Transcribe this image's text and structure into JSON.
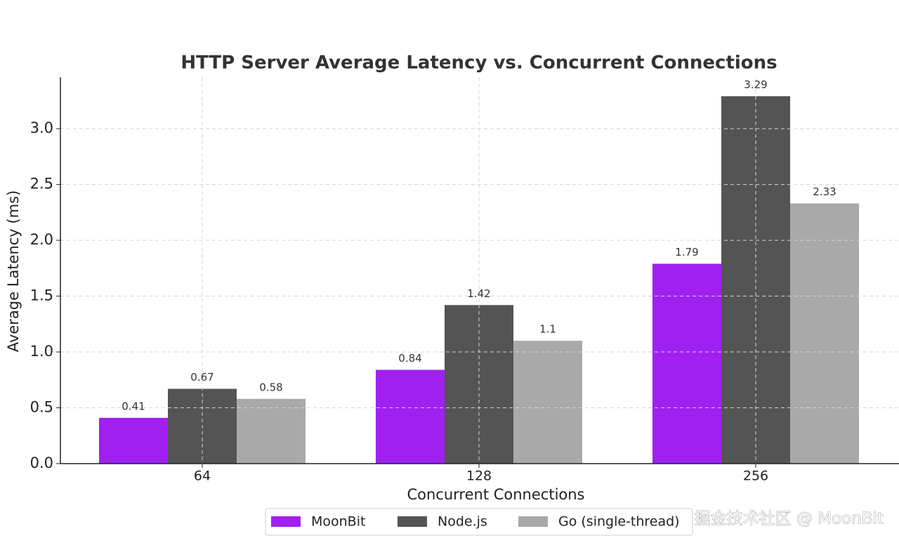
{
  "chart_data": {
    "type": "bar",
    "title": "HTTP Server Average Latency vs. Concurrent Connections",
    "x_label": "Concurrent Connections",
    "y_label": "Average Latency (ms)",
    "categories": [
      "64",
      "128",
      "256"
    ],
    "series": [
      {
        "name": "MoonBit",
        "color": "#a020f0",
        "values": [
          0.41,
          0.84,
          1.79
        ]
      },
      {
        "name": "Node.js",
        "color": "#545454",
        "values": [
          0.67,
          1.42,
          3.29
        ]
      },
      {
        "name": "Go (single-thread)",
        "color": "#a9a9a9",
        "values": [
          0.58,
          1.1,
          2.33
        ]
      }
    ],
    "ylim": [
      0,
      3.46
    ],
    "yticks": [
      {
        "value": 0,
        "label": "0.0"
      },
      0.5,
      {
        "value": 1,
        "label": "1.0"
      },
      1.5,
      {
        "value": 2,
        "label": "2.0"
      },
      2.5,
      {
        "value": 3,
        "label": "3.0"
      }
    ],
    "grid": true,
    "legend": "bottom",
    "watermark": "掘金技术社区 @ MoonBit"
  }
}
